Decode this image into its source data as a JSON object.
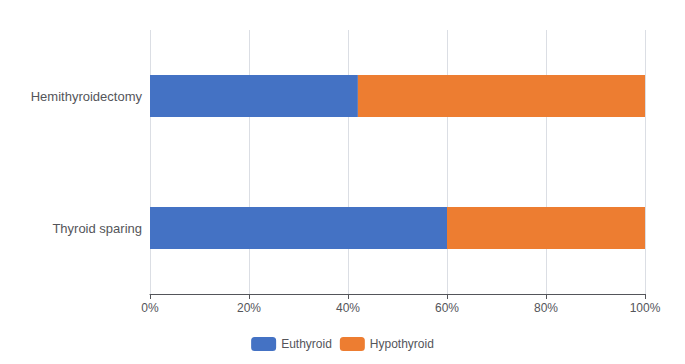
{
  "chart_data": {
    "type": "bar",
    "orientation": "horizontal",
    "stacked": true,
    "categories": [
      "Hemithyroidectomy",
      "Thyroid sparing"
    ],
    "series": [
      {
        "name": "Euthyroid",
        "color": "#4472C4",
        "values": [
          42,
          60
        ]
      },
      {
        "name": "Hypothyroid",
        "color": "#ED7D31",
        "values": [
          58,
          40
        ]
      }
    ],
    "xlim": [
      0,
      100
    ],
    "xticks": [
      {
        "value": 0,
        "label": "0%"
      },
      {
        "value": 20,
        "label": "20%"
      },
      {
        "value": 40,
        "label": "40%"
      },
      {
        "value": 60,
        "label": "60%"
      },
      {
        "value": 80,
        "label": "80%"
      },
      {
        "value": 100,
        "label": "100%"
      }
    ],
    "grid": true,
    "legend": "bottom"
  }
}
